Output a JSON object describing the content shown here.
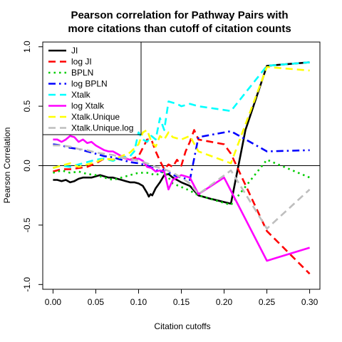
{
  "chart_data": {
    "type": "line",
    "title_lines": [
      "Pearson correlation for Pathway Pairs with",
      "more citations than cutoff of citation counts"
    ],
    "xlabel": "Citation cutoffs",
    "ylabel": "Pearson Correlation",
    "xlim": [
      -0.012,
      0.312
    ],
    "ylim": [
      -1.04,
      1.04
    ],
    "x_ticks": [
      0.0,
      0.05,
      0.1,
      0.15,
      0.2,
      0.25,
      0.3
    ],
    "x_tick_labels": [
      "0.00",
      "0.05",
      "0.10",
      "0.15",
      "0.20",
      "0.25",
      "0.30"
    ],
    "y_ticks": [
      -1.0,
      -0.5,
      0.0,
      0.5,
      1.0
    ],
    "y_tick_labels": [
      "-1.0",
      "-0.5",
      "0.0",
      "0.5",
      "1.0"
    ],
    "reference_line_y": 0,
    "legend_position": "top-left",
    "series": [
      {
        "name": "JI",
        "color": "#000000",
        "dash": "solid",
        "x": [
          0.0,
          0.005,
          0.01,
          0.015,
          0.02,
          0.025,
          0.03,
          0.035,
          0.04,
          0.045,
          0.05,
          0.055,
          0.06,
          0.065,
          0.07,
          0.075,
          0.08,
          0.085,
          0.09,
          0.095,
          0.1,
          0.105,
          0.11,
          0.112,
          0.114,
          0.116,
          0.118,
          0.12,
          0.125,
          0.13,
          0.135,
          0.14,
          0.15,
          0.16,
          0.17,
          0.185,
          0.208,
          0.225,
          0.25,
          0.3
        ],
        "y": [
          -0.12,
          -0.12,
          -0.13,
          -0.12,
          -0.14,
          -0.13,
          -0.11,
          -0.1,
          -0.1,
          -0.1,
          -0.09,
          -0.08,
          -0.09,
          -0.1,
          -0.1,
          -0.11,
          -0.12,
          -0.13,
          -0.14,
          -0.14,
          -0.15,
          -0.17,
          -0.23,
          -0.26,
          -0.24,
          -0.25,
          -0.22,
          -0.19,
          -0.14,
          -0.08,
          -0.07,
          -0.1,
          -0.14,
          -0.17,
          -0.25,
          -0.28,
          -0.32,
          0.3,
          0.84,
          0.87
        ]
      },
      {
        "name": "log JI",
        "color": "#ff0000",
        "dash": "dashed",
        "x": [
          0.0,
          0.01,
          0.02,
          0.03,
          0.04,
          0.05,
          0.06,
          0.07,
          0.08,
          0.09,
          0.1,
          0.105,
          0.11,
          0.115,
          0.12,
          0.125,
          0.13,
          0.135,
          0.14,
          0.145,
          0.15,
          0.155,
          0.16,
          0.165,
          0.17,
          0.2,
          0.208,
          0.25,
          0.3
        ],
        "y": [
          -0.05,
          -0.03,
          -0.03,
          -0.02,
          -0.01,
          0.02,
          0.06,
          0.05,
          0.07,
          0.05,
          0.08,
          0.15,
          0.22,
          0.22,
          0.12,
          0.04,
          -0.03,
          0.01,
          -0.01,
          0.05,
          0.0,
          0.12,
          0.2,
          0.3,
          0.22,
          0.18,
          0.1,
          -0.55,
          -0.91
        ]
      },
      {
        "name": "BPLN",
        "color": "#00cd00",
        "dash": "dotted",
        "x": [
          0.0,
          0.01,
          0.02,
          0.03,
          0.04,
          0.05,
          0.06,
          0.07,
          0.08,
          0.09,
          0.1,
          0.11,
          0.12,
          0.13,
          0.14,
          0.15,
          0.16,
          0.17,
          0.208,
          0.25,
          0.3
        ],
        "y": [
          -0.06,
          -0.04,
          -0.06,
          -0.05,
          -0.07,
          -0.08,
          -0.1,
          -0.12,
          -0.1,
          -0.08,
          -0.06,
          -0.06,
          -0.08,
          -0.05,
          -0.15,
          -0.18,
          -0.21,
          -0.25,
          -0.33,
          0.05,
          -0.1
        ]
      },
      {
        "name": "log BPLN",
        "color": "#0000ff",
        "dash": "dashdot",
        "x": [
          0.0,
          0.01,
          0.02,
          0.03,
          0.04,
          0.05,
          0.06,
          0.07,
          0.08,
          0.09,
          0.1,
          0.11,
          0.12,
          0.125,
          0.13,
          0.14,
          0.15,
          0.16,
          0.17,
          0.208,
          0.25,
          0.3
        ],
        "y": [
          0.18,
          0.17,
          0.15,
          0.14,
          0.12,
          0.1,
          0.08,
          0.07,
          0.05,
          0.03,
          0.02,
          0.0,
          -0.03,
          -0.06,
          -0.03,
          -0.08,
          -0.1,
          -0.12,
          0.24,
          0.29,
          0.12,
          0.13
        ]
      },
      {
        "name": "Xtalk",
        "color": "#00ffff",
        "dash": "dashed",
        "x": [
          0.0,
          0.01,
          0.02,
          0.03,
          0.04,
          0.05,
          0.06,
          0.07,
          0.08,
          0.09,
          0.095,
          0.1,
          0.105,
          0.11,
          0.115,
          0.12,
          0.125,
          0.13,
          0.135,
          0.14,
          0.145,
          0.15,
          0.16,
          0.17,
          0.208,
          0.25,
          0.3
        ],
        "y": [
          -0.02,
          0.0,
          -0.01,
          0.01,
          0.03,
          0.05,
          0.06,
          0.04,
          0.07,
          0.08,
          0.12,
          0.28,
          0.22,
          0.2,
          0.25,
          0.22,
          0.4,
          0.3,
          0.54,
          0.53,
          0.52,
          0.5,
          0.52,
          0.5,
          0.46,
          0.84,
          0.87
        ]
      },
      {
        "name": "log Xtalk",
        "color": "#ff00ff",
        "dash": "solid",
        "x": [
          0.0,
          0.005,
          0.01,
          0.015,
          0.02,
          0.025,
          0.03,
          0.035,
          0.04,
          0.045,
          0.05,
          0.055,
          0.06,
          0.065,
          0.07,
          0.075,
          0.08,
          0.085,
          0.09,
          0.095,
          0.1,
          0.105,
          0.11,
          0.115,
          0.12,
          0.125,
          0.13,
          0.135,
          0.14,
          0.15,
          0.16,
          0.17,
          0.2,
          0.25,
          0.3
        ],
        "y": [
          0.22,
          0.22,
          0.2,
          0.22,
          0.25,
          0.24,
          0.2,
          0.22,
          0.19,
          0.2,
          0.17,
          0.15,
          0.13,
          0.12,
          0.12,
          0.1,
          0.08,
          0.06,
          0.05,
          0.05,
          0.06,
          0.04,
          -0.01,
          -0.02,
          -0.05,
          -0.04,
          -0.05,
          -0.2,
          -0.12,
          -0.08,
          -0.1,
          -0.24,
          -0.1,
          -0.8,
          -0.69
        ]
      },
      {
        "name": "Xtalk.Unique",
        "color": "#ffff00",
        "dash": "dashed",
        "x": [
          0.0,
          0.01,
          0.02,
          0.03,
          0.04,
          0.05,
          0.06,
          0.07,
          0.08,
          0.09,
          0.1,
          0.105,
          0.11,
          0.115,
          0.12,
          0.125,
          0.13,
          0.135,
          0.14,
          0.15,
          0.16,
          0.17,
          0.208,
          0.25,
          0.3
        ],
        "y": [
          -0.02,
          0.0,
          0.02,
          -0.01,
          0.01,
          0.03,
          0.06,
          0.05,
          0.08,
          0.11,
          0.18,
          0.28,
          0.3,
          0.2,
          0.16,
          0.25,
          0.22,
          0.28,
          0.24,
          0.22,
          0.25,
          0.12,
          0.02,
          0.83,
          0.8
        ]
      },
      {
        "name": "Xtalk.Unique.log",
        "color": "#bebebe",
        "dash": "dashed",
        "x": [
          0.0,
          0.01,
          0.02,
          0.03,
          0.04,
          0.05,
          0.06,
          0.07,
          0.08,
          0.09,
          0.1,
          0.11,
          0.12,
          0.13,
          0.14,
          0.15,
          0.16,
          0.17,
          0.208,
          0.25,
          0.3
        ],
        "y": [
          0.17,
          0.17,
          0.16,
          0.14,
          0.13,
          0.11,
          0.1,
          0.09,
          0.07,
          0.06,
          0.04,
          0.02,
          -0.01,
          -0.03,
          -0.06,
          -0.1,
          -0.15,
          -0.24,
          -0.04,
          -0.53,
          -0.2
        ]
      }
    ]
  }
}
